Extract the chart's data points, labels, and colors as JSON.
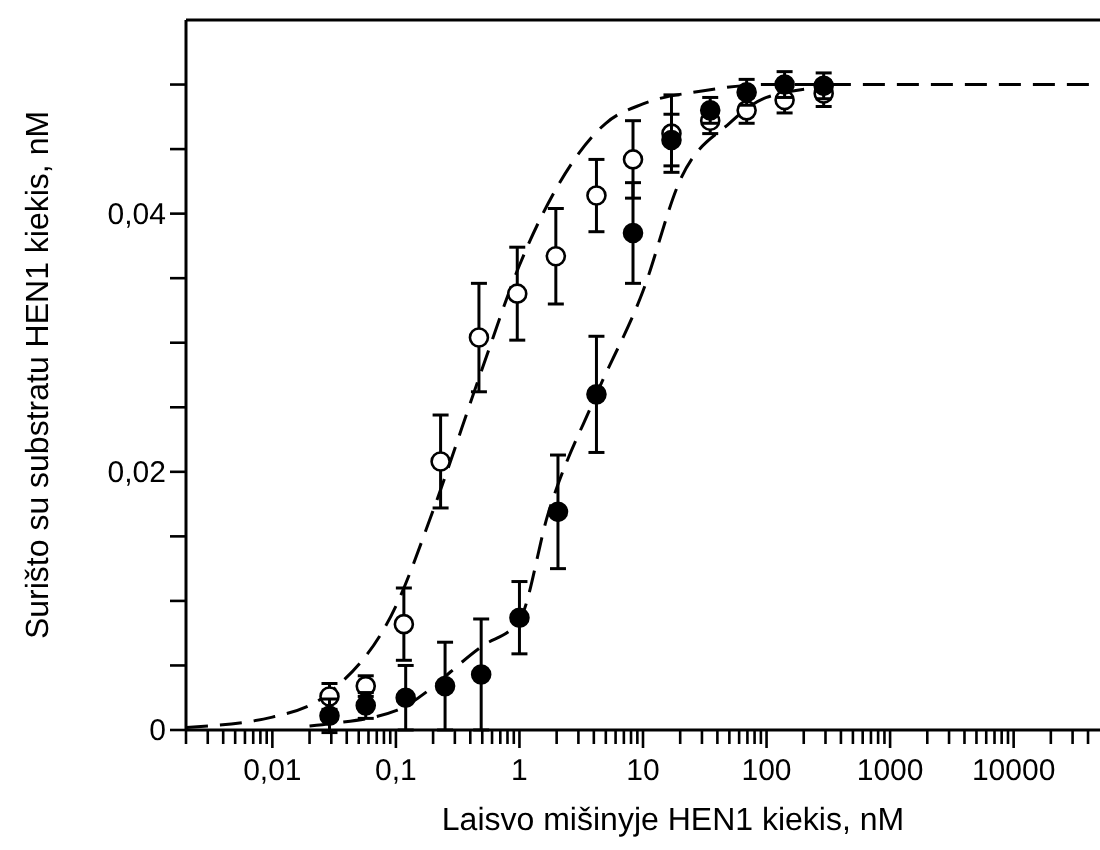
{
  "chart_data": {
    "type": "scatter",
    "xlabel": "Laisvo mišinyje HEN1 kiekis, nM",
    "ylabel": "Surišto su substratu HEN1 kiekis, nM",
    "log": "x",
    "grid": false,
    "xlim": [
      0.002,
      50000
    ],
    "ylim": [
      0,
      0.055
    ],
    "xticks": [
      {
        "value": 0.002,
        "label": null
      },
      {
        "value": 0.003,
        "label": null
      },
      {
        "value": 0.004,
        "label": null
      },
      {
        "value": 0.005,
        "label": null
      },
      {
        "value": 0.006,
        "label": null
      },
      {
        "value": 0.007,
        "label": null
      },
      {
        "value": 0.008,
        "label": null
      },
      {
        "value": 0.009,
        "label": null
      },
      {
        "value": 0.01,
        "label": "0,01"
      },
      {
        "value": 0.02,
        "label": null
      },
      {
        "value": 0.03,
        "label": null
      },
      {
        "value": 0.04,
        "label": null
      },
      {
        "value": 0.05,
        "label": null
      },
      {
        "value": 0.06,
        "label": null
      },
      {
        "value": 0.07,
        "label": null
      },
      {
        "value": 0.08,
        "label": null
      },
      {
        "value": 0.09,
        "label": null
      },
      {
        "value": 0.1,
        "label": "0,1"
      },
      {
        "value": 0.2,
        "label": null
      },
      {
        "value": 0.3,
        "label": null
      },
      {
        "value": 0.4,
        "label": null
      },
      {
        "value": 0.5,
        "label": null
      },
      {
        "value": 0.6,
        "label": null
      },
      {
        "value": 0.7,
        "label": null
      },
      {
        "value": 0.8,
        "label": null
      },
      {
        "value": 0.9,
        "label": null
      },
      1,
      {
        "value": 2,
        "label": null
      },
      {
        "value": 3,
        "label": null
      },
      {
        "value": 4,
        "label": null
      },
      {
        "value": 5,
        "label": null
      },
      {
        "value": 6,
        "label": null
      },
      {
        "value": 7,
        "label": null
      },
      {
        "value": 8,
        "label": null
      },
      {
        "value": 9,
        "label": null
      },
      10,
      {
        "value": 20,
        "label": null
      },
      {
        "value": 30,
        "label": null
      },
      {
        "value": 40,
        "label": null
      },
      {
        "value": 50,
        "label": null
      },
      {
        "value": 60,
        "label": null
      },
      {
        "value": 70,
        "label": null
      },
      {
        "value": 80,
        "label": null
      },
      {
        "value": 90,
        "label": null
      },
      100,
      {
        "value": 200,
        "label": null
      },
      {
        "value": 300,
        "label": null
      },
      {
        "value": 400,
        "label": null
      },
      {
        "value": 500,
        "label": null
      },
      {
        "value": 600,
        "label": null
      },
      {
        "value": 700,
        "label": null
      },
      {
        "value": 800,
        "label": null
      },
      {
        "value": 900,
        "label": null
      },
      1000,
      {
        "value": 2000,
        "label": null
      },
      {
        "value": 3000,
        "label": null
      },
      {
        "value": 4000,
        "label": null
      },
      {
        "value": 5000,
        "label": null
      },
      {
        "value": 6000,
        "label": null
      },
      {
        "value": 7000,
        "label": null
      },
      {
        "value": 8000,
        "label": null
      },
      {
        "value": 9000,
        "label": null
      },
      10000,
      {
        "value": 20000,
        "label": null
      },
      {
        "value": 30000,
        "label": null
      },
      {
        "value": 40000,
        "label": null
      }
    ],
    "yticks": [
      0,
      {
        "value": 0.005,
        "label": null
      },
      {
        "value": 0.01,
        "label": null
      },
      {
        "value": 0.015,
        "label": null
      },
      {
        "value": 0.02,
        "label": "0,02"
      },
      {
        "value": 0.025,
        "label": null
      },
      {
        "value": 0.03,
        "label": null
      },
      {
        "value": 0.035,
        "label": null
      },
      {
        "value": 0.04,
        "label": "0,04"
      },
      {
        "value": 0.045,
        "label": null
      },
      {
        "value": 0.05,
        "label": null
      }
    ],
    "series": [
      {
        "type": "line",
        "color": "#000000",
        "line_style": "dashed",
        "marker": "none",
        "x": [
          0.002,
          0.01,
          0.03,
          0.1,
          0.2,
          0.5,
          1,
          2,
          5,
          10,
          30,
          100,
          50000
        ],
        "values": [
          0.0002,
          0.001,
          0.003,
          0.0096,
          0.017,
          0.028,
          0.036,
          0.042,
          0.047,
          0.0485,
          0.0495,
          0.05,
          0.05
        ]
      },
      {
        "type": "line",
        "color": "#000000",
        "line_style": "dashed",
        "marker": "none",
        "x": [
          0.02,
          0.03,
          0.1,
          0.5,
          1,
          1.7,
          4.2,
          10,
          20,
          50,
          100,
          300
        ],
        "values": [
          0.0003,
          0.0005,
          0.0015,
          0.0065,
          0.0085,
          0.0167,
          0.026,
          0.034,
          0.0426,
          0.047,
          0.049,
          0.0498
        ]
      },
      {
        "type": "scatter",
        "color": "#ffffff",
        "marker": "circle",
        "x": [
          0.029,
          0.057,
          0.116,
          0.23,
          0.47,
          0.96,
          1.97,
          4.2,
          8.3,
          17,
          35,
          69,
          140,
          290
        ],
        "values": [
          0.0026,
          0.0034,
          0.0082,
          0.0208,
          0.0304,
          0.0338,
          0.0367,
          0.0414,
          0.0442,
          0.0462,
          0.0472,
          0.048,
          0.0488,
          0.0493
        ],
        "errors": [
          0.001,
          0.0008,
          0.0028,
          0.0036,
          0.0042,
          0.0036,
          0.0037,
          0.0028,
          0.003,
          0.003,
          0.001,
          0.001,
          0.001,
          0.001
        ]
      },
      {
        "type": "scatter",
        "color": "#000000",
        "marker": "circle",
        "x": [
          0.029,
          0.057,
          0.12,
          0.25,
          0.49,
          1,
          2.05,
          4.2,
          8.3,
          17,
          35,
          69,
          140,
          290
        ],
        "values": [
          0.0011,
          0.0019,
          0.0025,
          0.0034,
          0.0043,
          0.0087,
          0.0169,
          0.026,
          0.0385,
          0.0457,
          0.048,
          0.0494,
          0.05,
          0.0499
        ],
        "errors": [
          0.0013,
          0.001,
          0.0025,
          0.0034,
          0.0043,
          0.0028,
          0.0044,
          0.0045,
          0.0039,
          0.002,
          0.001,
          0.001,
          0.001,
          0.001
        ]
      }
    ]
  }
}
